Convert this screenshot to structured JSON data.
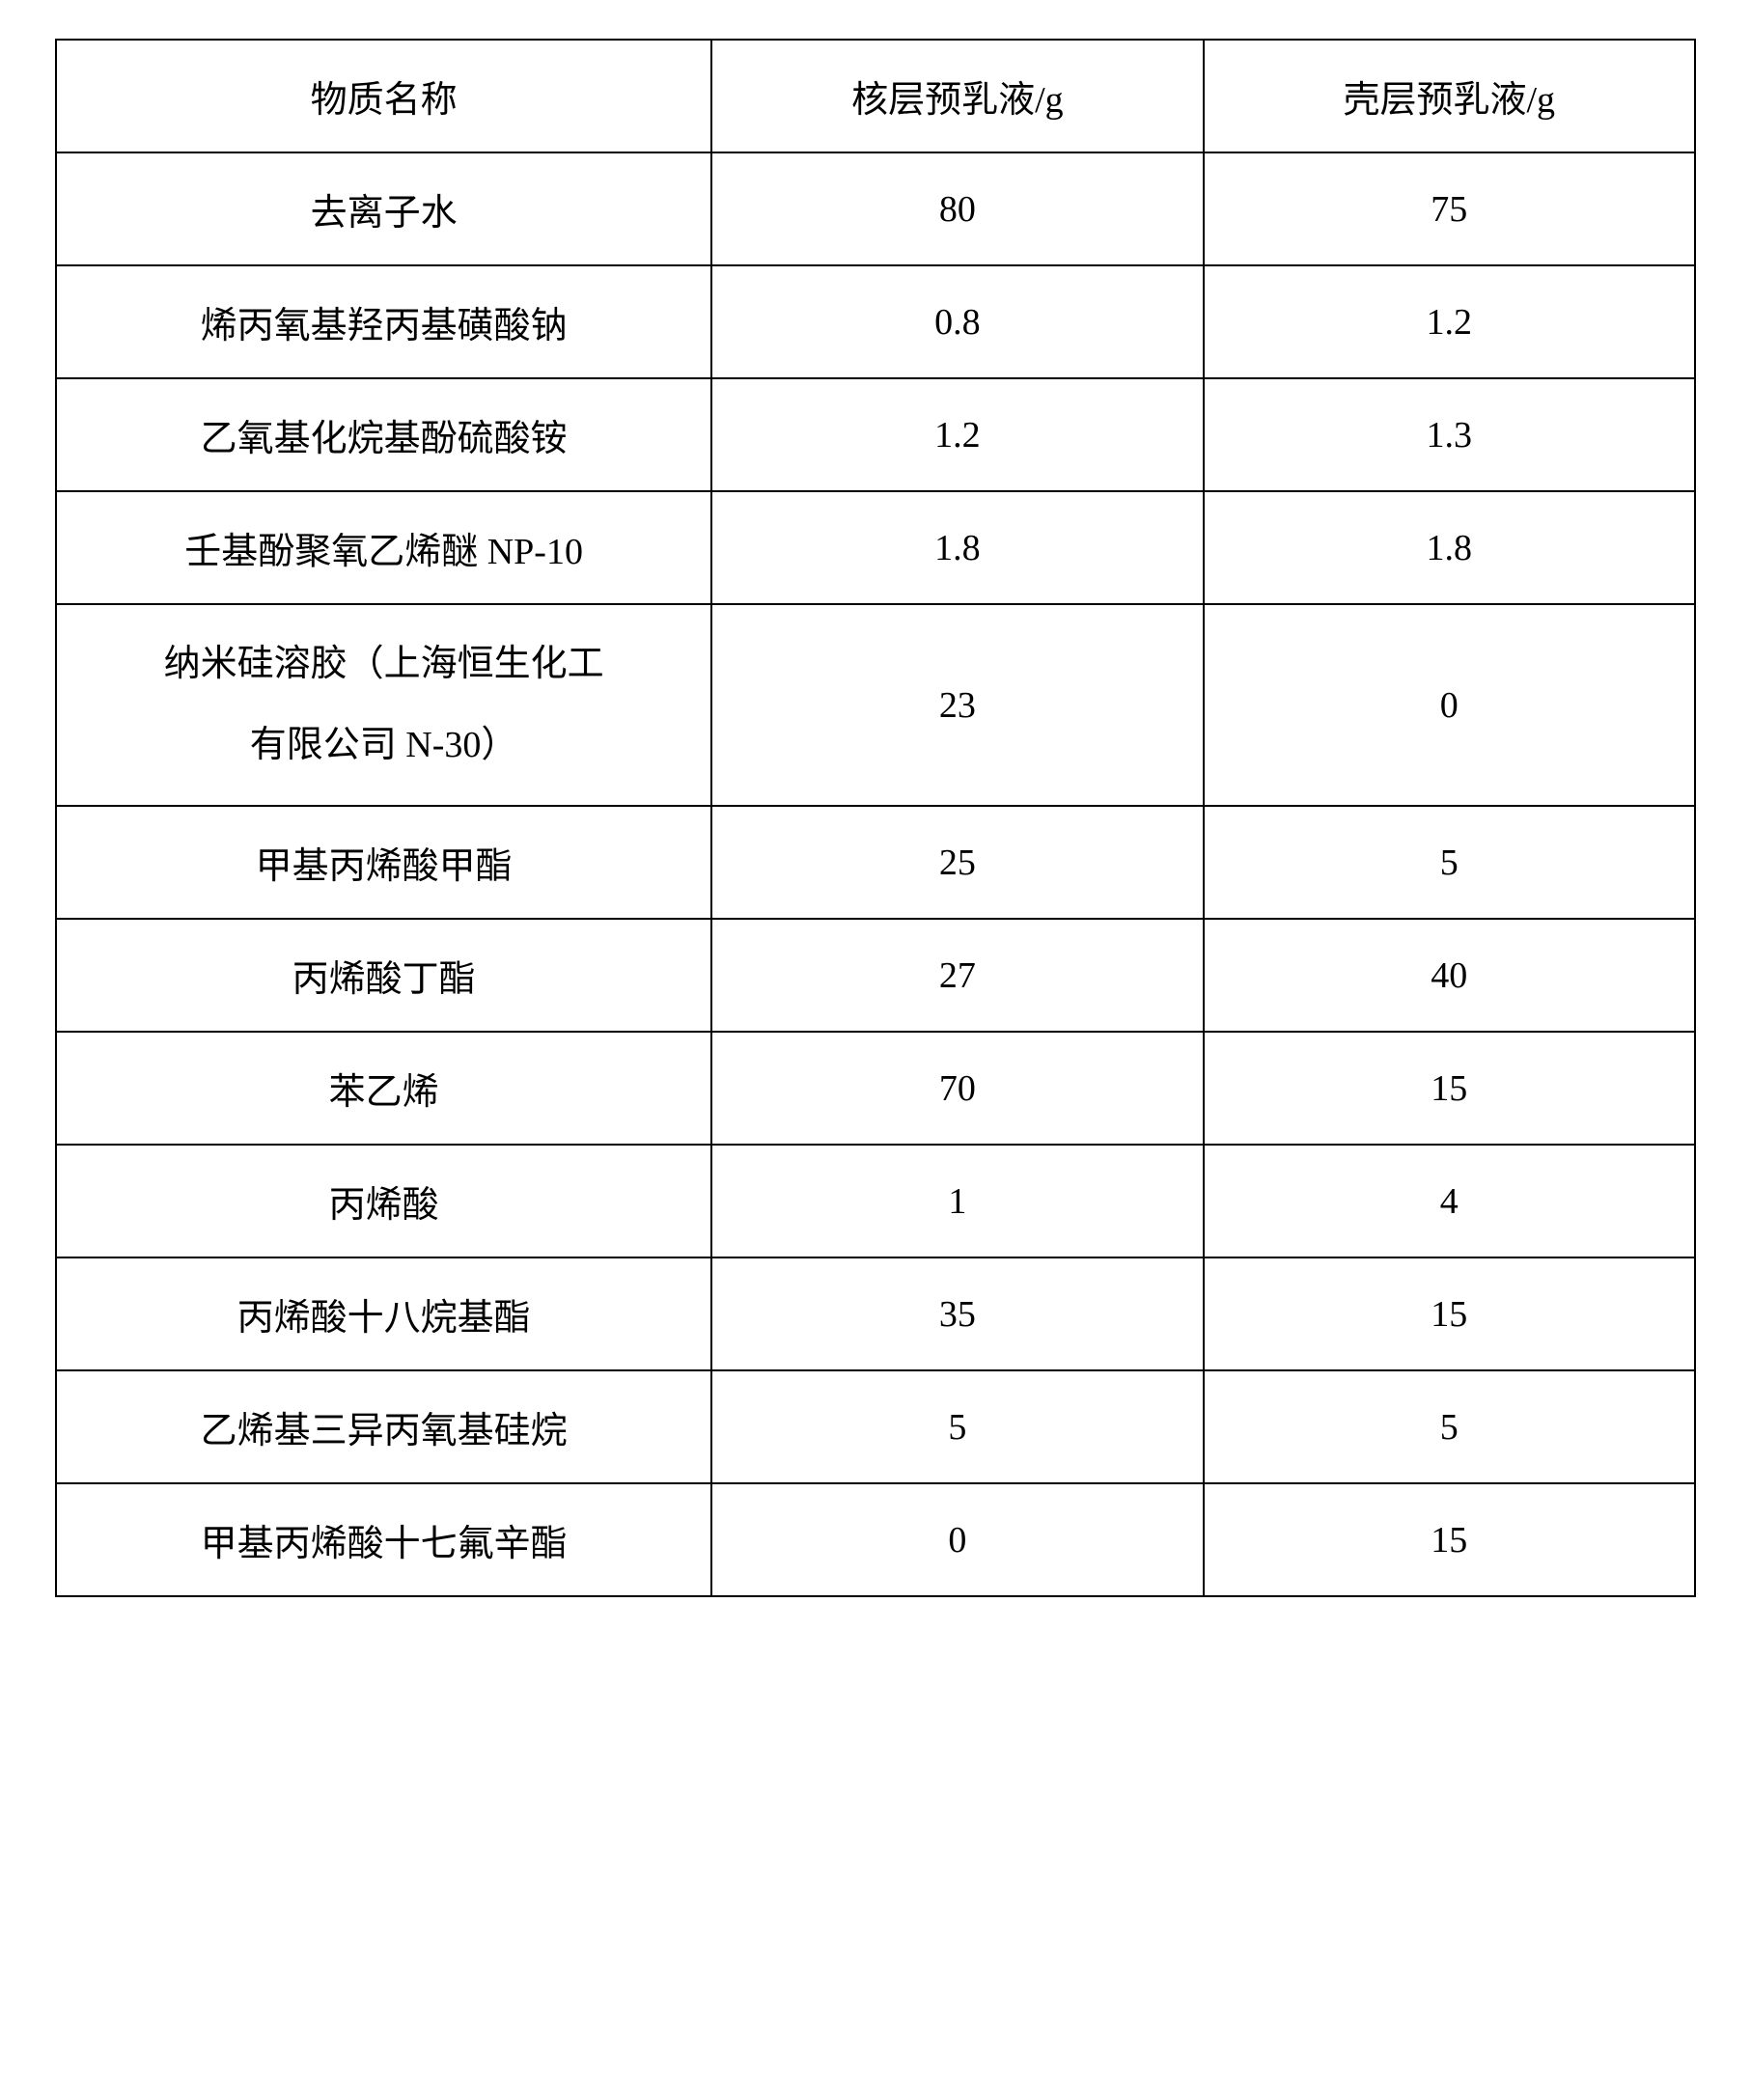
{
  "table": {
    "columns": [
      "物质名称",
      "核层预乳液/g",
      "壳层预乳液/g"
    ],
    "rows": [
      {
        "name": "去离子水",
        "core": "80",
        "shell": "75",
        "multiline": false
      },
      {
        "name": "烯丙氧基羟丙基磺酸钠",
        "core": "0.8",
        "shell": "1.2",
        "multiline": false
      },
      {
        "name": "乙氧基化烷基酚硫酸铵",
        "core": "1.2",
        "shell": "1.3",
        "multiline": false
      },
      {
        "name": "壬基酚聚氧乙烯醚 NP-10",
        "core": "1.8",
        "shell": "1.8",
        "multiline": false
      },
      {
        "name": "纳米硅溶胶（上海恒生化工有限公司  N-30）",
        "core": "23",
        "shell": "0",
        "multiline": true,
        "name_line1": "纳米硅溶胶（上海恒生化工",
        "name_line2": "有限公司  N-30）"
      },
      {
        "name": "甲基丙烯酸甲酯",
        "core": "25",
        "shell": "5",
        "multiline": false
      },
      {
        "name": "丙烯酸丁酯",
        "core": "27",
        "shell": "40",
        "multiline": false
      },
      {
        "name": "苯乙烯",
        "core": "70",
        "shell": "15",
        "multiline": false
      },
      {
        "name": "丙烯酸",
        "core": "1",
        "shell": "4",
        "multiline": false
      },
      {
        "name": "丙烯酸十八烷基酯",
        "core": "35",
        "shell": "15",
        "multiline": false
      },
      {
        "name": "乙烯基三异丙氧基硅烷",
        "core": "5",
        "shell": "5",
        "multiline": false
      },
      {
        "name": "甲基丙烯酸十七氟辛酯",
        "core": "0",
        "shell": "15",
        "multiline": false
      }
    ],
    "styling": {
      "border_color": "#000000",
      "border_width": 2,
      "background_color": "#ffffff",
      "text_color": "#000000",
      "font_size": 38,
      "font_family": "SimSun",
      "cell_padding": 30,
      "column_widths_pct": [
        40,
        30,
        30
      ],
      "text_align": "center"
    }
  }
}
